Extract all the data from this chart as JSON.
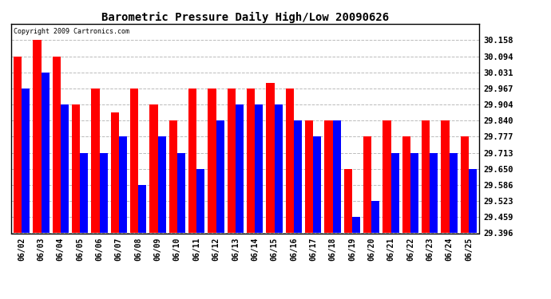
{
  "title": "Barometric Pressure Daily High/Low 20090626",
  "copyright": "Copyright 2009 Cartronics.com",
  "dates": [
    "06/02",
    "06/03",
    "06/04",
    "06/05",
    "06/06",
    "06/07",
    "06/08",
    "06/09",
    "06/10",
    "06/11",
    "06/12",
    "06/13",
    "06/14",
    "06/15",
    "06/16",
    "06/17",
    "06/18",
    "06/19",
    "06/20",
    "06/21",
    "06/22",
    "06/23",
    "06/24",
    "06/25"
  ],
  "highs": [
    30.094,
    30.158,
    30.094,
    29.904,
    29.967,
    29.872,
    29.967,
    29.904,
    29.84,
    29.967,
    29.967,
    29.967,
    29.967,
    29.99,
    29.967,
    29.84,
    29.84,
    29.65,
    29.777,
    29.84,
    29.777,
    29.84,
    29.84,
    29.777
  ],
  "lows": [
    29.967,
    30.031,
    29.904,
    29.713,
    29.713,
    29.777,
    29.586,
    29.777,
    29.713,
    29.65,
    29.84,
    29.904,
    29.904,
    29.904,
    29.84,
    29.777,
    29.84,
    29.459,
    29.523,
    29.713,
    29.713,
    29.713,
    29.713,
    29.65
  ],
  "high_color": "#FF0000",
  "low_color": "#0000FF",
  "bg_color": "#FFFFFF",
  "grid_color": "#BBBBBB",
  "yticks": [
    29.396,
    29.459,
    29.523,
    29.586,
    29.65,
    29.713,
    29.777,
    29.84,
    29.904,
    29.967,
    30.031,
    30.094,
    30.158
  ],
  "ymin": 29.396,
  "ymax": 30.222,
  "bar_width": 0.42,
  "figwidth": 6.9,
  "figheight": 3.75,
  "dpi": 100
}
